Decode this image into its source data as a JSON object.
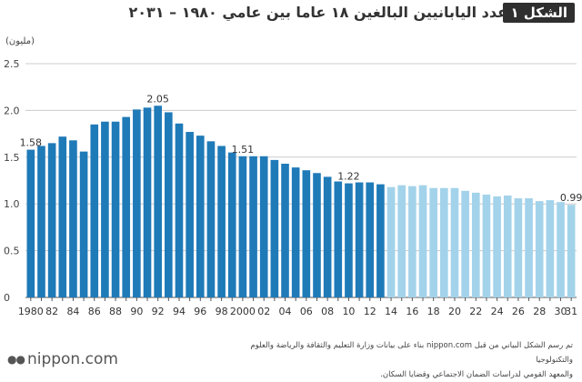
{
  "header": {
    "figure_label": "الشكل ١",
    "title": "عدد اليابانيين البالغين ١٨ عاما بين عامي ١٩٨٠ – ٢٠٣١"
  },
  "unit_label": "(مليون)",
  "footer": {
    "line1": "تم رسم الشكل البياني من قبل nippon.com بناء على بيانات وزارة التعليم والثقافة والرياضة والعلوم والتكنولوجيا",
    "line2": "والمعهد القومي لدراسات الضمان الاجتماعي وقضايا السكان."
  },
  "logo": {
    "text": "nippon.com"
  },
  "colors": {
    "actual": "#1f7ab8",
    "projected": "#a3d3ea",
    "grid": "#cccccc",
    "axis": "#555555"
  },
  "chart_data": {
    "type": "bar",
    "title": "",
    "xlabel": "",
    "ylabel": "(مليون)",
    "ylim": [
      0,
      2.5
    ],
    "yticks": [
      "0",
      "0.5",
      "1.0",
      "1.5",
      "2.0",
      "2.5"
    ],
    "grid": true,
    "categories": [
      "1980",
      "81",
      "82",
      "83",
      "84",
      "85",
      "86",
      "87",
      "88",
      "89",
      "90",
      "91",
      "92",
      "93",
      "94",
      "95",
      "96",
      "97",
      "98",
      "99",
      "2000",
      "01",
      "02",
      "03",
      "04",
      "05",
      "06",
      "07",
      "08",
      "09",
      "10",
      "11",
      "12",
      "13",
      "14",
      "15",
      "16",
      "17",
      "18",
      "19",
      "20",
      "21",
      "22",
      "23",
      "24",
      "25",
      "26",
      "27",
      "28",
      "29",
      "30",
      "31"
    ],
    "tick_labels": [
      "1980",
      "",
      "82",
      "",
      "84",
      "",
      "86",
      "",
      "88",
      "",
      "90",
      "",
      "92",
      "",
      "94",
      "",
      "96",
      "",
      "98",
      "",
      "2000",
      "",
      "02",
      "",
      "04",
      "",
      "06",
      "",
      "08",
      "",
      "10",
      "",
      "12",
      "",
      "14",
      "",
      "16",
      "",
      "18",
      "",
      "20",
      "",
      "22",
      "",
      "24",
      "",
      "26",
      "",
      "28",
      "",
      "30",
      "31"
    ],
    "values": [
      1.58,
      1.62,
      1.65,
      1.72,
      1.68,
      1.56,
      1.85,
      1.88,
      1.88,
      1.93,
      2.01,
      2.03,
      2.05,
      1.98,
      1.86,
      1.77,
      1.73,
      1.67,
      1.62,
      1.55,
      1.51,
      1.51,
      1.51,
      1.47,
      1.43,
      1.39,
      1.36,
      1.33,
      1.29,
      1.24,
      1.22,
      1.23,
      1.23,
      1.21,
      1.18,
      1.2,
      1.19,
      1.2,
      1.17,
      1.17,
      1.17,
      1.14,
      1.12,
      1.1,
      1.08,
      1.09,
      1.06,
      1.06,
      1.03,
      1.04,
      1.02,
      0.99
    ],
    "projected_from_index": 34,
    "data_labels": [
      {
        "index": 0,
        "text": "1.58"
      },
      {
        "index": 12,
        "text": "2.05"
      },
      {
        "index": 20,
        "text": "1.51"
      },
      {
        "index": 30,
        "text": "1.22"
      },
      {
        "index": 51,
        "text": "0.99"
      }
    ]
  }
}
